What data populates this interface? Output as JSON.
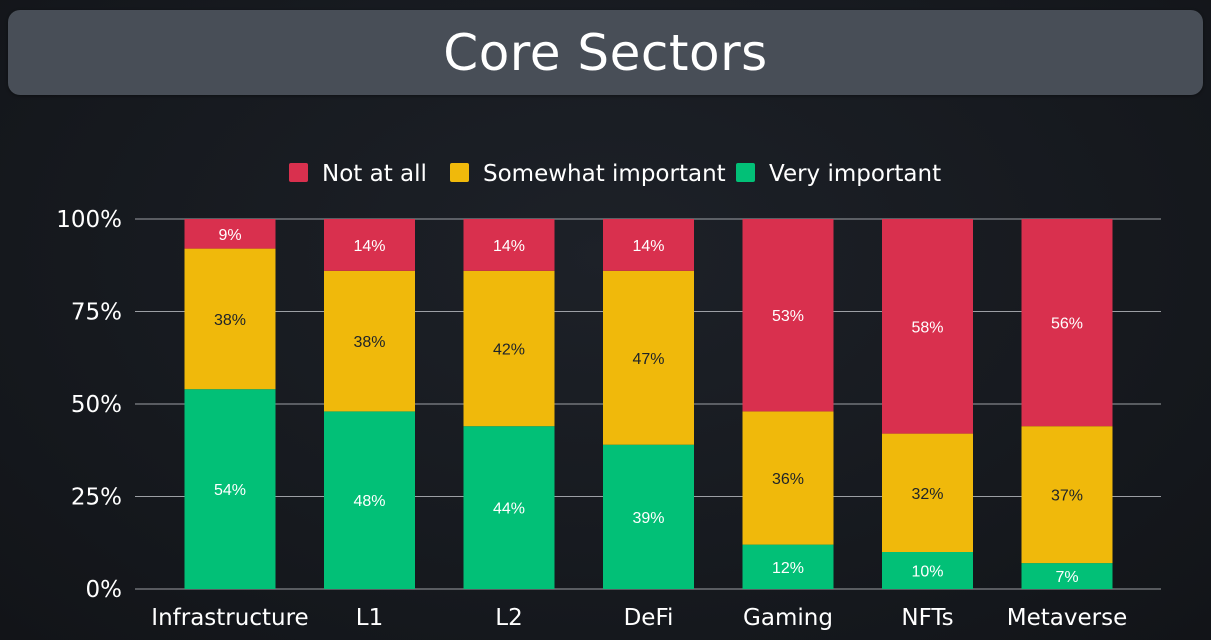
{
  "title": "Core Sectors",
  "chart_data": {
    "type": "bar",
    "stacked": true,
    "categories": [
      "Infrastructure",
      "L1",
      "L2",
      "DeFi",
      "Gaming",
      "NFTs",
      "Metaverse"
    ],
    "series": [
      {
        "name": "Very important",
        "color": "#02c077",
        "label_color": "#ffffff",
        "values": [
          54,
          48,
          44,
          39,
          12,
          10,
          7
        ],
        "labels": [
          "54%",
          "48%",
          "44%",
          "39%",
          "12%",
          "10%",
          "7%"
        ]
      },
      {
        "name": "Somewhat important",
        "color": "#f0b90b",
        "label_color": "#1e2329",
        "values": [
          38,
          38,
          42,
          47,
          36,
          32,
          37
        ],
        "labels": [
          "38%",
          "38%",
          "42%",
          "47%",
          "36%",
          "32%",
          "37%"
        ]
      },
      {
        "name": "Not at all",
        "color": "#d9304e",
        "label_color": "#ffffff",
        "values": [
          9,
          14,
          14,
          14,
          53,
          58,
          56
        ],
        "labels": [
          "9%",
          "14%",
          "14%",
          "14%",
          "53%",
          "58%",
          "56%"
        ]
      }
    ],
    "legend_order": [
      "Not at all",
      "Somewhat important",
      "Very important"
    ],
    "legend_position": "top-center",
    "ylim": [
      0,
      100
    ],
    "yticks": [
      0,
      25,
      50,
      75,
      100
    ],
    "ytick_labels": [
      "0%",
      "25%",
      "50%",
      "75%",
      "100%"
    ],
    "grid": true,
    "xlabel": "",
    "ylabel": ""
  }
}
